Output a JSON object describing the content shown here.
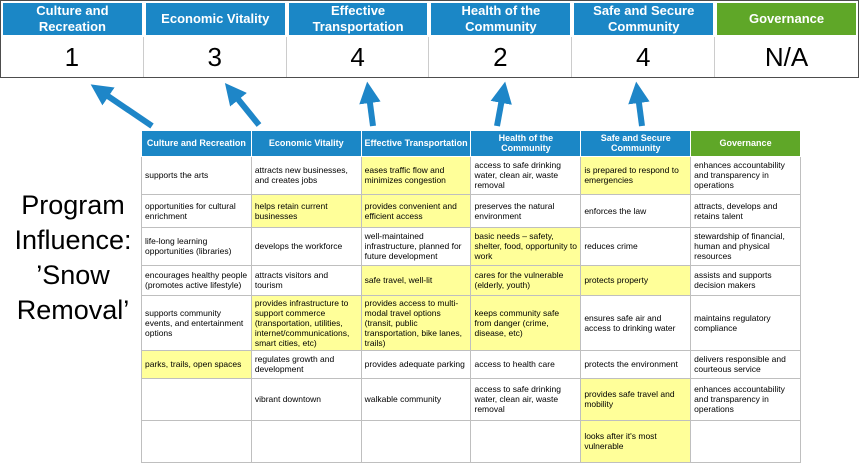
{
  "title": "Program\nInfluence:\n’Snow\nRemoval’",
  "colors": {
    "header_blue": "#1B87C6",
    "header_green": "#5FA728",
    "highlight_yellow": "#FFFF99",
    "arrow_blue": "#1E86C8"
  },
  "score_band": {
    "columns": [
      {
        "label": "Culture and Recreation",
        "score": "1",
        "color": "#1B87C6"
      },
      {
        "label": "Economic Vitality",
        "score": "3",
        "color": "#1B87C6"
      },
      {
        "label": "Effective Transportation",
        "score": "4",
        "color": "#1B87C6"
      },
      {
        "label": "Health of the Community",
        "score": "2",
        "color": "#1B87C6"
      },
      {
        "label": "Safe and Secure Community",
        "score": "4",
        "color": "#1B87C6"
      },
      {
        "label": "Governance",
        "score": "N/A",
        "color": "#5FA728"
      }
    ]
  },
  "matrix": {
    "headers": [
      {
        "label": "Culture and Recreation",
        "color": "#1B87C6"
      },
      {
        "label": "Economic Vitality",
        "color": "#1B87C6"
      },
      {
        "label": "Effective Transportation",
        "color": "#1B87C6"
      },
      {
        "label": "Health of the Community",
        "color": "#1B87C6"
      },
      {
        "label": "Safe and Secure Community",
        "color": "#1B87C6"
      },
      {
        "label": "Governance",
        "color": "#5FA728"
      }
    ],
    "rows": [
      [
        {
          "t": "supports the arts",
          "hl": false
        },
        {
          "t": "attracts new businesses, and creates jobs",
          "hl": false
        },
        {
          "t": "eases traffic flow and minimizes congestion",
          "hl": true
        },
        {
          "t": "access to safe drinking water, clean air, waste removal",
          "hl": false
        },
        {
          "t": "is prepared to respond to emergencies",
          "hl": true
        },
        {
          "t": "enhances accountability and transparency in operations",
          "hl": false
        }
      ],
      [
        {
          "t": "opportunities for cultural enrichment",
          "hl": false
        },
        {
          "t": "helps retain current businesses",
          "hl": true
        },
        {
          "t": "provides convenient and efficient access",
          "hl": true
        },
        {
          "t": "preserves the natural environment",
          "hl": false
        },
        {
          "t": "enforces the law",
          "hl": false
        },
        {
          "t": "attracts, develops and retains talent",
          "hl": false
        }
      ],
      [
        {
          "t": "life-long learning opportunities (libraries)",
          "hl": false
        },
        {
          "t": "develops the workforce",
          "hl": false
        },
        {
          "t": "well-maintained infrastructure, planned for future development",
          "hl": false
        },
        {
          "t": "basic needs – safety, shelter, food, opportunity to work",
          "hl": true
        },
        {
          "t": "reduces crime",
          "hl": false
        },
        {
          "t": "stewardship of financial, human and physical resources",
          "hl": false
        }
      ],
      [
        {
          "t": "encourages healthy people (promotes active lifestyle)",
          "hl": false
        },
        {
          "t": "attracts visitors and tourism",
          "hl": false
        },
        {
          "t": "safe travel, well-lit",
          "hl": true
        },
        {
          "t": "cares for the vulnerable (elderly, youth)",
          "hl": true
        },
        {
          "t": "protects property",
          "hl": true
        },
        {
          "t": "assists and supports decision makers",
          "hl": false
        }
      ],
      [
        {
          "t": "supports community events, and entertainment options",
          "hl": false
        },
        {
          "t": "provides infrastructure to support commerce (transportation, utilities, internet/communications, smart cities, etc)",
          "hl": true
        },
        {
          "t": "provides access to multi-modal travel options (transit, public transportation, bike lanes, trails)",
          "hl": true
        },
        {
          "t": "keeps community safe from danger (crime, disease, etc)",
          "hl": true
        },
        {
          "t": "ensures safe air and access to drinking water",
          "hl": false
        },
        {
          "t": "maintains regulatory compliance",
          "hl": false
        }
      ],
      [
        {
          "t": "parks, trails, open spaces",
          "hl": true
        },
        {
          "t": "regulates growth and development",
          "hl": false
        },
        {
          "t": "provides adequate parking",
          "hl": false
        },
        {
          "t": "access to health care",
          "hl": false
        },
        {
          "t": "protects the environment",
          "hl": false
        },
        {
          "t": "delivers responsible and courteous service",
          "hl": false
        }
      ],
      [
        {
          "t": "",
          "hl": false
        },
        {
          "t": "vibrant downtown",
          "hl": false
        },
        {
          "t": "walkable community",
          "hl": false
        },
        {
          "t": "access to safe drinking water, clean air, waste removal",
          "hl": false
        },
        {
          "t": "provides safe travel and mobility",
          "hl": true
        },
        {
          "t": "enhances accountability and transparency in operations",
          "hl": false
        }
      ],
      [
        {
          "t": "",
          "hl": false
        },
        {
          "t": "",
          "hl": false
        },
        {
          "t": "",
          "hl": false
        },
        {
          "t": "",
          "hl": false
        },
        {
          "t": "looks after it's most vulnerable",
          "hl": true
        },
        {
          "t": "",
          "hl": false
        }
      ]
    ]
  }
}
